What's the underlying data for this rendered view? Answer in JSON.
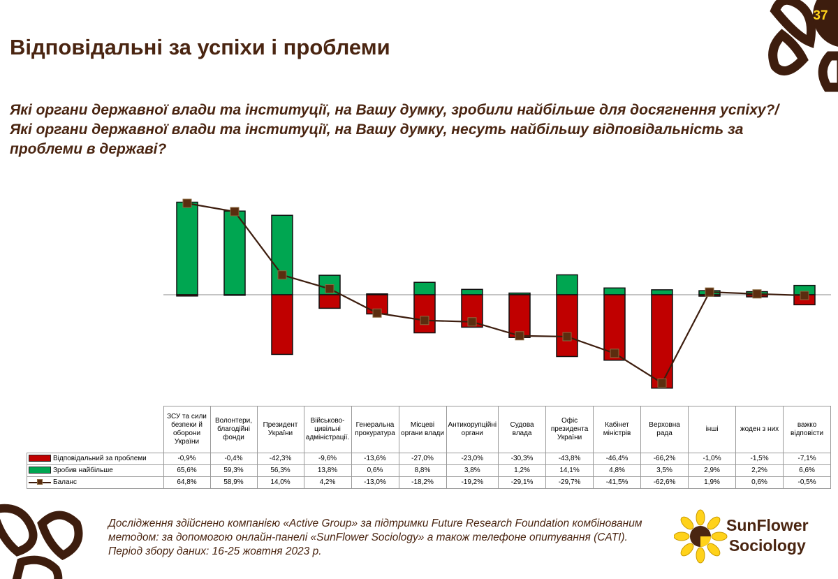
{
  "page_number": "37",
  "title": "Відповідальні за успіхи і проблеми",
  "question": "Які органи державної влади та інституції, на Вашу думку, зробили найбільше для досягнення успіху?/Які органи державної влади та інституції, на Вашу думку, несуть найбільшу відповідальність за проблеми в державі?",
  "footnote": "Дослідження здійснено компанією «Active Group» за підтримки Future Research Foundation комбінованим методом: за допомогою онлайн-панелі «SunFlower Sociology» а також телефоне опитування (CATI). Період збору даних: 16-25 жовтня 2023 р.",
  "logo": {
    "line1": "SunFlower",
    "line2": "Sociology"
  },
  "colors": {
    "responsible": "#c00000",
    "success": "#00a651",
    "balance": "#3d1d0e",
    "brand": "#4a2511",
    "accent": "#ffd21a"
  },
  "chart_data": {
    "type": "bar",
    "categories": [
      "ЗСУ та сили безпеки й оборони України",
      "Волонтери, благодійні фонди",
      "Президент України",
      "Військово-цивільні адміністрації.",
      "Генеральна прокуратура",
      "Місцеві органи влади",
      "Антикорупційні органи",
      "Судова влада",
      "Офіс президента України",
      "Кабінет міністрів",
      "Верховна рада",
      "інші",
      "жоден з них",
      "важко відповісти"
    ],
    "series": [
      {
        "name": "Відповідальний за проблеми",
        "type": "bar",
        "color": "#c00000",
        "values": [
          -0.9,
          -0.4,
          -42.3,
          -9.6,
          -13.6,
          -27.0,
          -23.0,
          -30.3,
          -43.8,
          -46.4,
          -66.2,
          -1.0,
          -1.5,
          -7.1
        ],
        "labels": [
          "-0,9%",
          "-0,4%",
          "-42,3%",
          "-9,6%",
          "-13,6%",
          "-27,0%",
          "-23,0%",
          "-30,3%",
          "-43,8%",
          "-46,4%",
          "-66,2%",
          "-1,0%",
          "-1,5%",
          "-7,1%"
        ]
      },
      {
        "name": "Зробив найбільше",
        "type": "bar",
        "color": "#00a651",
        "values": [
          65.6,
          59.3,
          56.3,
          13.8,
          0.6,
          8.8,
          3.8,
          1.2,
          14.1,
          4.8,
          3.5,
          2.9,
          2.2,
          6.6
        ],
        "labels": [
          "65,6%",
          "59,3%",
          "56,3%",
          "13,8%",
          "0,6%",
          "8,8%",
          "3,8%",
          "1,2%",
          "14,1%",
          "4,8%",
          "3,5%",
          "2,9%",
          "2,2%",
          "6,6%"
        ]
      },
      {
        "name": "Баланс",
        "type": "line",
        "color": "#3d1d0e",
        "values": [
          64.8,
          58.9,
          14.0,
          4.2,
          -13.0,
          -18.2,
          -19.2,
          -29.1,
          -29.7,
          -41.5,
          -62.6,
          1.9,
          0.6,
          -0.5
        ],
        "labels": [
          "64,8%",
          "58,9%",
          "14,0%",
          "4,2%",
          "-13,0%",
          "-18,2%",
          "-19,2%",
          "-29,1%",
          "-29,7%",
          "-41,5%",
          "-62,6%",
          "1,9%",
          "0,6%",
          "-0,5%"
        ]
      }
    ],
    "stacked": true,
    "ylim": [
      -70,
      70
    ],
    "grid": false,
    "legend": "table-below"
  }
}
